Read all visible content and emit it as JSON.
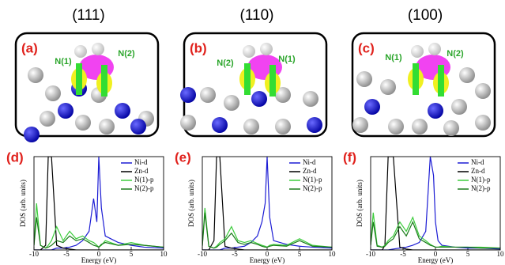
{
  "panels": [
    {
      "title": "(111)",
      "label": "(a)",
      "n_labels": [
        "N(1)",
        "N(2)"
      ]
    },
    {
      "title": "(110)",
      "label": "(b)",
      "n_labels": [
        "N(2)",
        "N(1)"
      ]
    },
    {
      "title": "(100)",
      "label": "(c)",
      "n_labels": [
        "N(1)",
        "N(2)"
      ]
    }
  ],
  "chart_data": [
    {
      "type": "line",
      "label": "(d)",
      "xlabel": "Energy (eV)",
      "ylabel": "DOS (arb. units)",
      "x": [
        -10,
        -9.6,
        -9,
        -8.2,
        -7.8,
        -7.3,
        -6.5,
        -5.5,
        -4.5,
        -3.5,
        -2.5,
        -1.5,
        -0.8,
        -0.3,
        0,
        0.4,
        1,
        3,
        5,
        7,
        10
      ],
      "xlim": [
        -10,
        10
      ],
      "xticks": [
        -10,
        -5,
        0,
        5,
        10
      ],
      "ylim": [
        0,
        1
      ],
      "series": [
        {
          "name": "Ni-d",
          "color": "#1c1cd4",
          "values": [
            0,
            0,
            0,
            0,
            0,
            0,
            0.02,
            0.02,
            0.03,
            0.05,
            0.1,
            0.2,
            0.55,
            0.3,
            1,
            0.45,
            0.15,
            0.08,
            0.05,
            0.03,
            0.02
          ]
        },
        {
          "name": "Zn-d",
          "color": "#000000",
          "values": [
            0,
            0,
            0,
            0.05,
            1,
            1,
            0.05,
            0.02,
            0.01,
            0,
            0,
            0,
            0,
            0,
            0,
            0,
            0,
            0,
            0,
            0,
            0
          ]
        },
        {
          "name": "N(1)-p",
          "color": "#3ccc3c",
          "values": [
            0.05,
            0.5,
            0.05,
            0.02,
            0.05,
            0.1,
            0.25,
            0.1,
            0.2,
            0.12,
            0.15,
            0.1,
            0.08,
            0.05,
            0.03,
            0.05,
            0.1,
            0.05,
            0.08,
            0.05,
            0.03
          ]
        },
        {
          "name": "N(2)-p",
          "color": "#1a7a1a",
          "values": [
            0.05,
            0.35,
            0.05,
            0.02,
            0.03,
            0.05,
            0.1,
            0.08,
            0.15,
            0.1,
            0.12,
            0.08,
            0.05,
            0.04,
            0.03,
            0.06,
            0.08,
            0.05,
            0.06,
            0.05,
            0.03
          ]
        }
      ]
    },
    {
      "type": "line",
      "label": "(e)",
      "xlabel": "Energy (eV)",
      "ylabel": "DOS (arb. units)",
      "x": [
        -10,
        -9.6,
        -9,
        -8.2,
        -7.8,
        -7.3,
        -6.5,
        -5.5,
        -4.5,
        -3.5,
        -2.5,
        -1.5,
        -0.8,
        -0.3,
        0,
        0.4,
        1,
        3,
        5,
        7,
        10
      ],
      "xlim": [
        -10,
        10
      ],
      "xticks": [
        -10,
        -5,
        0,
        5,
        10
      ],
      "ylim": [
        0,
        1
      ],
      "series": [
        {
          "name": "Ni-d",
          "color": "#1c1cd4",
          "values": [
            0,
            0,
            0,
            0,
            0,
            0,
            0.02,
            0.02,
            0.03,
            0.04,
            0.08,
            0.15,
            0.3,
            0.5,
            1,
            0.35,
            0.1,
            0.06,
            0.04,
            0.03,
            0.02
          ]
        },
        {
          "name": "Zn-d",
          "color": "#000000",
          "values": [
            0,
            0,
            0,
            0.1,
            1,
            1,
            0.04,
            0.02,
            0.01,
            0,
            0,
            0,
            0,
            0,
            0,
            0,
            0,
            0,
            0,
            0,
            0
          ]
        },
        {
          "name": "N(1)-p",
          "color": "#3ccc3c",
          "values": [
            0.05,
            0.45,
            0.04,
            0.02,
            0.04,
            0.08,
            0.12,
            0.25,
            0.1,
            0.08,
            0.1,
            0.07,
            0.05,
            0.04,
            0.03,
            0.05,
            0.06,
            0.05,
            0.12,
            0.05,
            0.03
          ]
        },
        {
          "name": "N(2)-p",
          "color": "#1a7a1a",
          "values": [
            0.04,
            0.4,
            0.04,
            0.02,
            0.03,
            0.06,
            0.1,
            0.18,
            0.08,
            0.06,
            0.08,
            0.06,
            0.04,
            0.03,
            0.03,
            0.04,
            0.05,
            0.04,
            0.1,
            0.04,
            0.03
          ]
        }
      ]
    },
    {
      "type": "line",
      "label": "(f)",
      "xlabel": "Energy (eV)",
      "ylabel": "DOS (arb. units)",
      "x": [
        -10,
        -9.6,
        -9,
        -8.2,
        -7.8,
        -7.3,
        -6.5,
        -5.5,
        -4.5,
        -3.5,
        -2.5,
        -1.5,
        -0.8,
        -0.3,
        0,
        0.4,
        1,
        3,
        5,
        7,
        10
      ],
      "xlim": [
        -10,
        10
      ],
      "xticks": [
        -10,
        -5,
        0,
        5,
        10
      ],
      "ylim": [
        0,
        1
      ],
      "series": [
        {
          "name": "Ni-d",
          "color": "#1c1cd4",
          "values": [
            0,
            0,
            0,
            0,
            0,
            0,
            0.01,
            0.02,
            0.03,
            0.05,
            0.08,
            0.2,
            1,
            0.8,
            0.3,
            0.1,
            0.05,
            0.03,
            0.02,
            0.02,
            0.01
          ]
        },
        {
          "name": "Zn-d",
          "color": "#000000",
          "values": [
            0,
            0,
            0,
            0,
            0.05,
            1,
            1,
            0.03,
            0.01,
            0,
            0,
            0,
            0,
            0,
            0,
            0,
            0,
            0,
            0,
            0,
            0
          ]
        },
        {
          "name": "N(1)-p",
          "color": "#3ccc3c",
          "values": [
            0.05,
            0.4,
            0.05,
            0.03,
            0.05,
            0.1,
            0.15,
            0.3,
            0.2,
            0.35,
            0.15,
            0.1,
            0.06,
            0.04,
            0.03,
            0.03,
            0.04,
            0.03,
            0.03,
            0.03,
            0.02
          ]
        },
        {
          "name": "N(2)-p",
          "color": "#1a7a1a",
          "values": [
            0.05,
            0.3,
            0.04,
            0.03,
            0.04,
            0.08,
            0.12,
            0.25,
            0.15,
            0.3,
            0.12,
            0.08,
            0.05,
            0.04,
            0.03,
            0.03,
            0.03,
            0.03,
            0.03,
            0.02,
            0.02
          ]
        }
      ]
    }
  ]
}
